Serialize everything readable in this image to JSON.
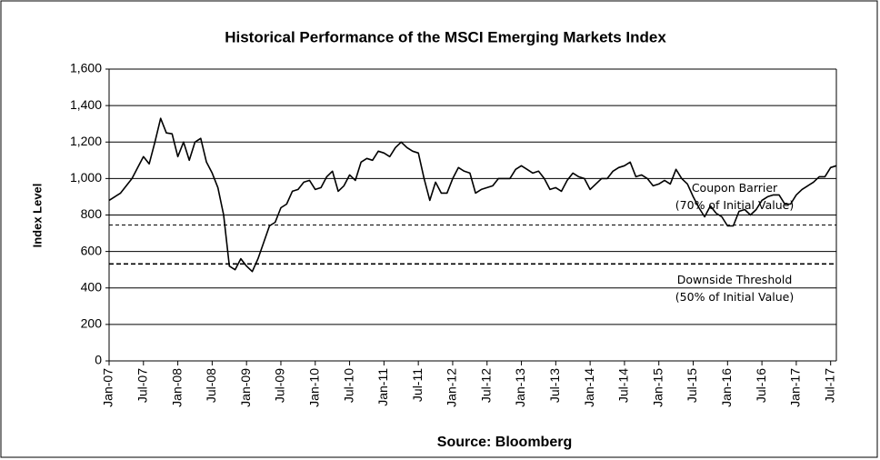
{
  "chart_data": {
    "type": "line",
    "title": "Historical Performance of the MSCI Emerging Markets Index",
    "source": "Source: Bloomberg",
    "y_label": "Index Level",
    "categories": [
      "Jan-07",
      null,
      null,
      null,
      null,
      null,
      "Jul-07",
      null,
      null,
      null,
      null,
      null,
      "Jan-08",
      null,
      null,
      null,
      null,
      null,
      "Jul-08",
      null,
      null,
      null,
      null,
      null,
      "Jan-09",
      null,
      null,
      null,
      null,
      null,
      "Jul-09",
      null,
      null,
      null,
      null,
      null,
      "Jan-10",
      null,
      null,
      null,
      null,
      null,
      "Jul-10",
      null,
      null,
      null,
      null,
      null,
      "Jan-11",
      null,
      null,
      null,
      null,
      null,
      "Jul-11",
      null,
      null,
      null,
      null,
      null,
      "Jan-12",
      null,
      null,
      null,
      null,
      null,
      "Jul-12",
      null,
      null,
      null,
      null,
      null,
      "Jan-13",
      null,
      null,
      null,
      null,
      null,
      "Jul-13",
      null,
      null,
      null,
      null,
      null,
      "Jan-14",
      null,
      null,
      null,
      null,
      null,
      "Jul-14",
      null,
      null,
      null,
      null,
      null,
      "Jan-15",
      null,
      null,
      null,
      null,
      null,
      "Jul-15",
      null,
      null,
      null,
      null,
      null,
      "Jan-16",
      null,
      null,
      null,
      null,
      null,
      "Jul-16",
      null,
      null,
      null,
      null,
      null,
      "Jan-17",
      null,
      null,
      null,
      null,
      null,
      "Jul-17",
      null
    ],
    "series": [
      {
        "name": "MSCI Emerging Markets Index",
        "color": "#000000",
        "values": [
          880,
          900,
          920,
          960,
          1000,
          1060,
          1120,
          1080,
          1200,
          1330,
          1250,
          1245,
          1120,
          1200,
          1100,
          1200,
          1220,
          1090,
          1030,
          950,
          800,
          520,
          500,
          560,
          520,
          490,
          560,
          650,
          740,
          760,
          840,
          860,
          930,
          940,
          980,
          990,
          940,
          950,
          1010,
          1040,
          930,
          960,
          1020,
          990,
          1090,
          1110,
          1100,
          1150,
          1140,
          1120,
          1170,
          1200,
          1170,
          1150,
          1140,
          1000,
          880,
          980,
          920,
          920,
          1000,
          1060,
          1040,
          1030,
          920,
          940,
          950,
          960,
          1000,
          1000,
          1000,
          1050,
          1070,
          1050,
          1030,
          1040,
          1000,
          940,
          950,
          930,
          990,
          1030,
          1010,
          1000,
          940,
          970,
          1000,
          1000,
          1040,
          1060,
          1070,
          1090,
          1010,
          1020,
          1000,
          960,
          970,
          990,
          970,
          1050,
          1000,
          970,
          900,
          840,
          790,
          850,
          810,
          790,
          740,
          740,
          820,
          830,
          800,
          830,
          880,
          900,
          910,
          910,
          860,
          860,
          910,
          940,
          960,
          980,
          1010,
          1010,
          1060,
          1070
        ]
      }
    ],
    "ylim": [
      0,
      1600
    ],
    "yticks": [
      0,
      200,
      400,
      600,
      800,
      {
        "value": 1000,
        "label": "1,000"
      },
      {
        "value": 1200,
        "label": "1,200"
      },
      {
        "value": 1400,
        "label": "1,400"
      },
      {
        "value": 1600,
        "label": "1,600"
      }
    ],
    "grid": true,
    "reference_lines": [
      {
        "value": 745,
        "label": [
          "Coupon Barrier",
          "(70% of Initial Value)"
        ],
        "position": "above"
      },
      {
        "value": 532,
        "label": [
          "Downside Threshold",
          "(50% of Initial Value)"
        ],
        "position": "below"
      }
    ]
  }
}
